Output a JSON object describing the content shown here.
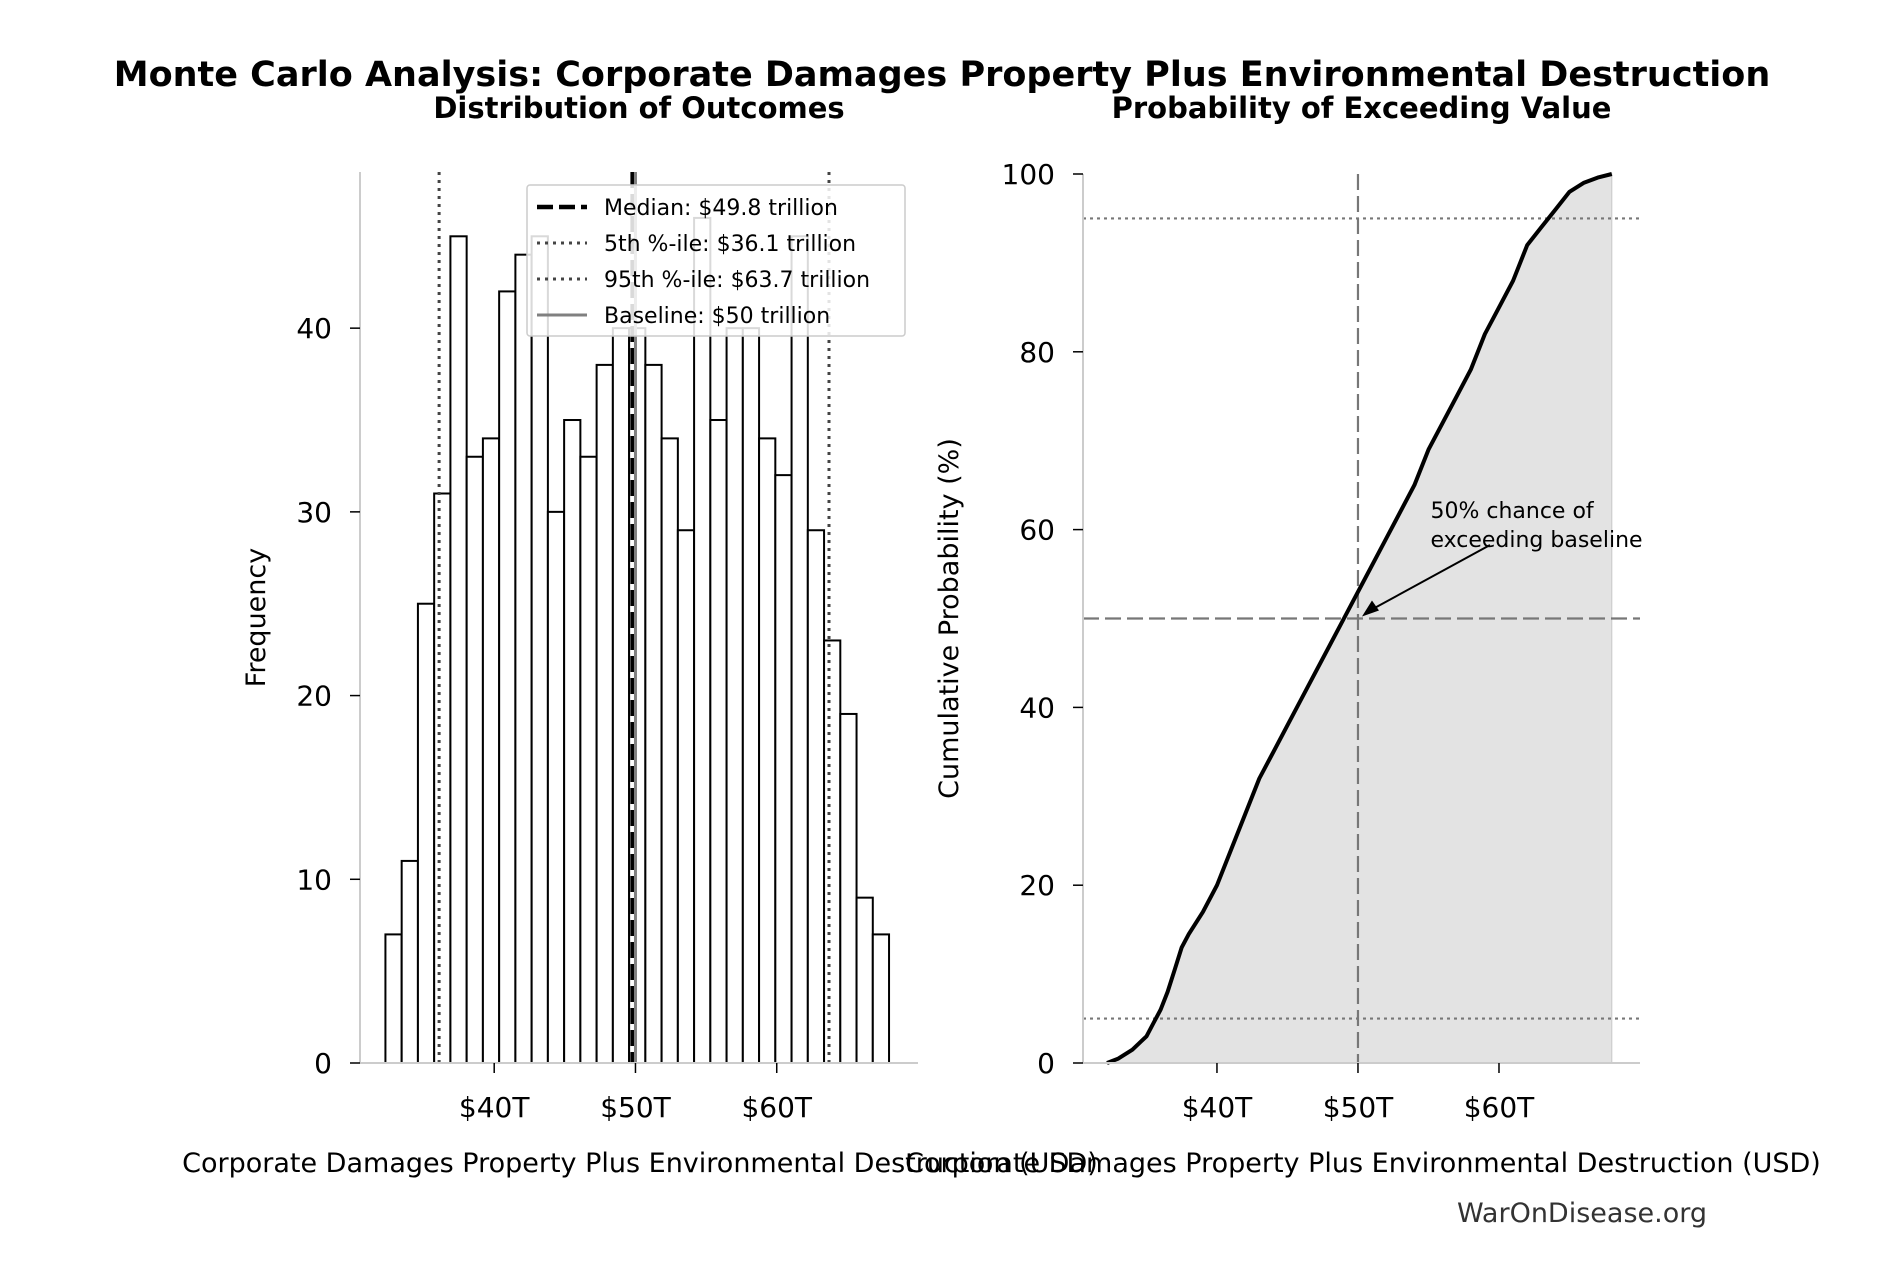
{
  "title": "Monte Carlo Analysis: Corporate Damages Property Plus Environmental Destruction",
  "footer": "WarOnDisease.org",
  "colors": {
    "text": "#000000",
    "bar_fill": "#ffffff",
    "bar_edge": "#000000",
    "baseline": "#808080",
    "cdf_fill": "#e3e3e3",
    "footer": "#333333"
  },
  "chart_data": [
    {
      "type": "bar",
      "subtitle": "Distribution of Outcomes",
      "xlabel": "Corporate Damages Property Plus Environmental Destruction (USD)",
      "ylabel": "Frequency",
      "xlim": [
        30.5,
        70
      ],
      "ylim": [
        0,
        48.5
      ],
      "x_ticks": [
        {
          "value": 40,
          "label": "$40T"
        },
        {
          "value": 50,
          "label": "$50T"
        },
        {
          "value": 60,
          "label": "$60T"
        }
      ],
      "y_ticks": [
        {
          "value": 0,
          "label": "0"
        },
        {
          "value": 10,
          "label": "10"
        },
        {
          "value": 20,
          "label": "20"
        },
        {
          "value": 30,
          "label": "30"
        },
        {
          "value": 40,
          "label": "40"
        }
      ],
      "bin_width": 1.15,
      "bins_start": 32.3,
      "frequencies": [
        7,
        11,
        25,
        31,
        45,
        33,
        34,
        42,
        44,
        45,
        30,
        35,
        33,
        38,
        40,
        40,
        38,
        34,
        29,
        46,
        35,
        40,
        40,
        34,
        32,
        45,
        29,
        23,
        19,
        9,
        7
      ],
      "grid": false,
      "legend_position": "top-right",
      "reference_lines": [
        {
          "label": "Median: $49.8 trillion",
          "value": 49.8,
          "style": "dashed"
        },
        {
          "label": "5th %-ile: $36.1 trillion",
          "value": 36.1,
          "style": "dotted"
        },
        {
          "label": "95th %-ile: $63.7 trillion",
          "value": 63.7,
          "style": "dotted"
        },
        {
          "label": "Baseline: $50 trillion",
          "value": 50,
          "style": "solid-gray"
        }
      ]
    },
    {
      "type": "line",
      "subtitle": "Probability of Exceeding Value",
      "xlabel": "Corporate Damages Property Plus Environmental Destruction (USD)",
      "ylabel": "Cumulative Probability (%)",
      "xlim": [
        30.5,
        70
      ],
      "ylim": [
        0,
        100
      ],
      "x_ticks": [
        {
          "value": 40,
          "label": "$40T"
        },
        {
          "value": 50,
          "label": "$50T"
        },
        {
          "value": 60,
          "label": "$60T"
        }
      ],
      "y_ticks": [
        {
          "value": 0,
          "label": "0"
        },
        {
          "value": 20,
          "label": "20"
        },
        {
          "value": 40,
          "label": "40"
        },
        {
          "value": 60,
          "label": "60"
        },
        {
          "value": 80,
          "label": "80"
        },
        {
          "value": 100,
          "label": "100"
        }
      ],
      "x": [
        32.2,
        33,
        34,
        35,
        35.5,
        36,
        36.5,
        37,
        37.5,
        38,
        39,
        40,
        41,
        42,
        43,
        44,
        45,
        46,
        47,
        48,
        49,
        50,
        51,
        52,
        53,
        54,
        55,
        56,
        57,
        58,
        59,
        60,
        61,
        62,
        63,
        64,
        65,
        66,
        67,
        68
      ],
      "y": [
        0,
        0.5,
        1.5,
        3,
        4.5,
        6,
        8,
        10.5,
        13,
        14.5,
        17,
        20,
        24,
        28,
        32,
        35,
        38,
        41,
        44,
        47,
        50,
        53,
        56,
        59,
        62,
        65,
        69,
        72,
        75,
        78,
        82,
        85,
        88,
        92,
        94,
        96,
        98,
        99,
        99.6,
        100
      ],
      "reference_lines": [
        {
          "axis": "x",
          "value": 50,
          "style": "dashed"
        },
        {
          "axis": "y",
          "value": 50,
          "style": "dashed"
        },
        {
          "axis": "y",
          "value": 5,
          "style": "dotted"
        },
        {
          "axis": "y",
          "value": 95,
          "style": "dotted"
        }
      ],
      "grid": false,
      "annotation": {
        "text_lines": [
          "50% chance of",
          "exceeding baseline"
        ],
        "x": 50,
        "y": 50,
        "text_x": 55,
        "text_y": 62
      }
    }
  ]
}
